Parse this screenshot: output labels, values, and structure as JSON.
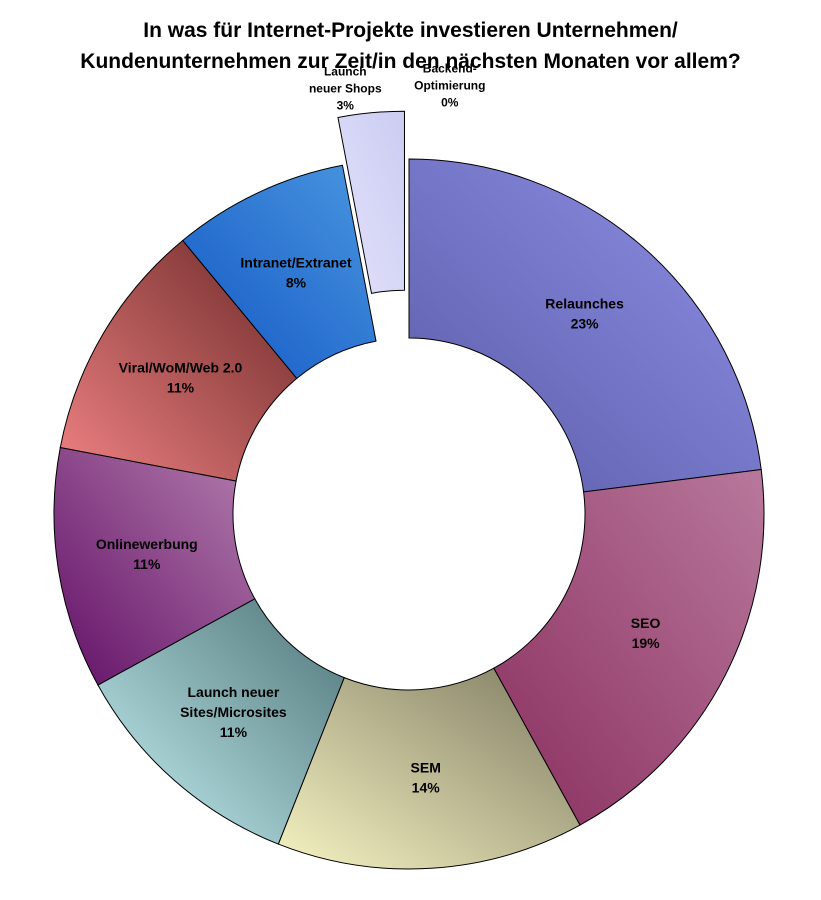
{
  "chart_data": {
    "type": "pie",
    "variant": "doughnut",
    "title_lines": [
      "In was für Internet-Projekte investieren Unternehmen/",
      "Kundenunternehmen zur Zeit/in den nächsten Monaten vor allem?"
    ],
    "unit": "%",
    "slices": [
      {
        "label": "Relaunches",
        "label_lines": [
          "Relaunches"
        ],
        "value": 23,
        "value_label": "23%",
        "colors": [
          "#5a5ca8",
          "#8f90e6"
        ],
        "exploded": false
      },
      {
        "label": "SEO",
        "label_lines": [
          "SEO"
        ],
        "value": 19,
        "value_label": "19%",
        "colors": [
          "#8a2f5e",
          "#b8789c"
        ],
        "exploded": false
      },
      {
        "label": "SEM",
        "label_lines": [
          "SEM"
        ],
        "value": 14,
        "value_label": "14%",
        "colors": [
          "#f6f4c2",
          "#7e7a62"
        ],
        "exploded": false
      },
      {
        "label": "Launch neuer Sites/Microsites",
        "label_lines": [
          "Launch neuer",
          "Sites/Microsites"
        ],
        "value": 11,
        "value_label": "11%",
        "colors": [
          "#c6f2f4",
          "#4e7478"
        ],
        "exploded": false
      },
      {
        "label": "Onlinewerbung",
        "label_lines": [
          "Onlinewerbung"
        ],
        "value": 11,
        "value_label": "11%",
        "colors": [
          "#620f66",
          "#b47fae"
        ],
        "exploded": false
      },
      {
        "label": "Viral/WoM/Web 2.0",
        "label_lines": [
          "Viral/WoM/Web 2.0"
        ],
        "value": 11,
        "value_label": "11%",
        "colors": [
          "#f08284",
          "#6a2826"
        ],
        "exploded": false
      },
      {
        "label": "Intranet/Extranet",
        "label_lines": [
          "Intranet/Extranet"
        ],
        "value": 8,
        "value_label": "8%",
        "colors": [
          "#1257c4",
          "#4a96e0"
        ],
        "exploded": false
      },
      {
        "label": "Launch neuer Shops",
        "label_lines": [
          "Launch",
          "neuer Shops"
        ],
        "value": 3,
        "value_label": "3%",
        "colors": [
          "#e2e2fb",
          "#ccccf2"
        ],
        "exploded": true
      },
      {
        "label": "Backend-Optimierung",
        "label_lines": [
          "Backend-",
          "Optimierung"
        ],
        "value": 0,
        "value_label": "0%",
        "colors": [
          "#ffffff",
          "#ffffff"
        ],
        "exploded": true
      }
    ],
    "legend": "none"
  }
}
